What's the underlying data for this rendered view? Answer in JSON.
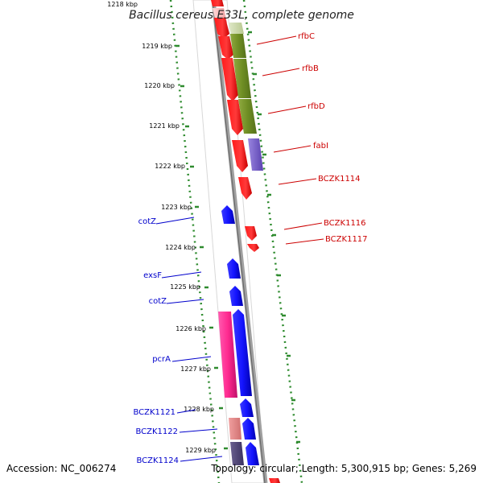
{
  "title": "Bacillus cereus E33L, complete genome",
  "footer": {
    "accession": "Accession: NC_006274",
    "summary": "Topology: circular; Length: 5,300,915 bp; Genes: 5,269"
  },
  "colors": {
    "backbone": "#8a8a8a",
    "tick": "#2e8b2e",
    "forward_label": "#cc0000",
    "reverse_label": "#0000cc"
  },
  "ruler": [
    {
      "text": "1218 kbp"
    },
    {
      "text": "1219 kbp"
    },
    {
      "text": "1220 kbp"
    },
    {
      "text": "1221 kbp"
    },
    {
      "text": "1222 kbp"
    },
    {
      "text": "1223 kbp"
    },
    {
      "text": "1224 kbp"
    },
    {
      "text": "1225 kbp"
    },
    {
      "text": "1226 kbp"
    },
    {
      "text": "1227 kbp"
    },
    {
      "text": "1228 kbp"
    },
    {
      "text": "1229 kbp"
    }
  ],
  "gene_labels": [
    {
      "text": "rfbC",
      "strand": "forward"
    },
    {
      "text": "rfbB",
      "strand": "forward"
    },
    {
      "text": "rfbD",
      "strand": "forward"
    },
    {
      "text": "fabI",
      "strand": "forward"
    },
    {
      "text": "BCZK1114",
      "strand": "forward"
    },
    {
      "text": "BCZK1116",
      "strand": "forward"
    },
    {
      "text": "BCZK1117",
      "strand": "forward"
    },
    {
      "text": "cotZ",
      "strand": "reverse"
    },
    {
      "text": "exsF",
      "strand": "reverse"
    },
    {
      "text": "cotZ",
      "strand": "reverse"
    },
    {
      "text": "pcrA",
      "strand": "reverse"
    },
    {
      "text": "BCZK1121",
      "strand": "reverse"
    },
    {
      "text": "BCZK1122",
      "strand": "reverse"
    },
    {
      "text": "BCZK1124",
      "strand": "reverse"
    }
  ]
}
